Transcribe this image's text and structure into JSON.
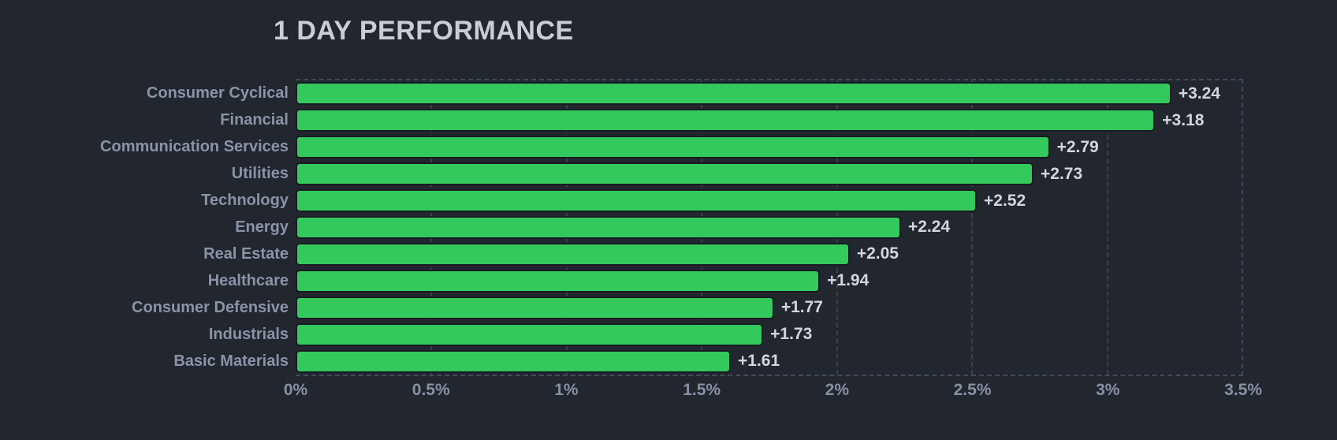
{
  "chart_data": {
    "type": "bar",
    "orientation": "horizontal",
    "title": "1 DAY PERFORMANCE",
    "categories": [
      "Consumer Cyclical",
      "Financial",
      "Communication Services",
      "Utilities",
      "Technology",
      "Energy",
      "Real Estate",
      "Healthcare",
      "Consumer Defensive",
      "Industrials",
      "Basic Materials"
    ],
    "values": [
      3.24,
      3.18,
      2.79,
      2.73,
      2.52,
      2.24,
      2.05,
      1.94,
      1.77,
      1.73,
      1.61
    ],
    "value_labels": [
      "+3.24",
      "+3.18",
      "+2.79",
      "+2.73",
      "+2.52",
      "+2.24",
      "+2.05",
      "+1.94",
      "+1.77",
      "+1.73",
      "+1.61"
    ],
    "x_ticks": [
      0,
      0.5,
      1,
      1.5,
      2,
      2.5,
      3,
      3.5
    ],
    "x_tick_labels": [
      "0%",
      "0.5%",
      "1%",
      "1.5%",
      "2%",
      "2.5%",
      "3%",
      "3.5%"
    ],
    "xlim": [
      0,
      3.5
    ],
    "xlabel": "",
    "ylabel": "",
    "grid": "dashed-vertical",
    "legend": "none",
    "colors": {
      "background": "#22262f",
      "bar": "#33c95c",
      "bar_border": "#171b23",
      "title": "#c9cdd6",
      "category_label": "#8b93a6",
      "value_label": "#d3d6dd",
      "axis_label": "#8791a3",
      "gridline": "#3a404d"
    }
  }
}
